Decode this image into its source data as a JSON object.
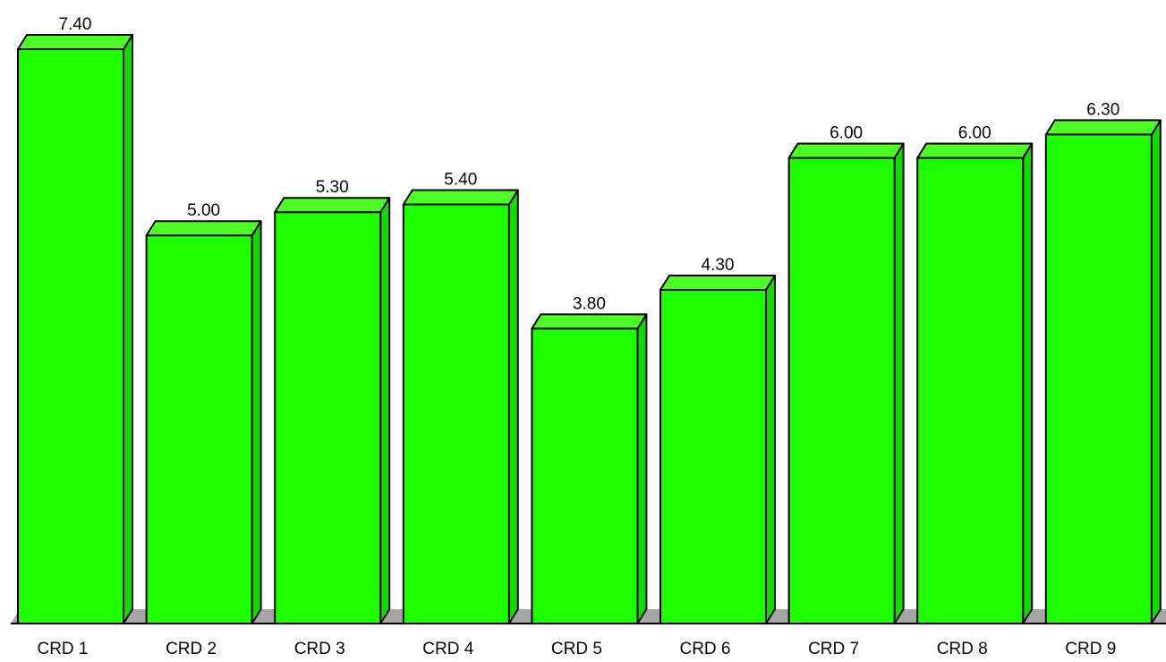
{
  "chart_data": {
    "type": "bar",
    "style": "3d-column",
    "categories": [
      "CRD 1",
      "CRD 2",
      "CRD 3",
      "CRD 4",
      "CRD 5",
      "CRD 6",
      "CRD 7",
      "CRD 8",
      "CRD 9"
    ],
    "values": [
      7.4,
      5.0,
      5.3,
      5.4,
      3.8,
      4.3,
      6.0,
      6.0,
      6.3
    ],
    "value_labels": [
      "7.40",
      "5.00",
      "5.30",
      "5.40",
      "3.80",
      "4.30",
      "6.00",
      "6.00",
      "6.30"
    ],
    "title": "",
    "xlabel": "",
    "ylabel": "",
    "ylim": [
      0,
      7.4
    ],
    "grid": false,
    "legend": "none",
    "colors": {
      "bar_front": "#1eff00",
      "bar_top": "#4dff26",
      "bar_side": "#14d900",
      "floor": "#a6a6a6",
      "outline": "#000000"
    }
  }
}
